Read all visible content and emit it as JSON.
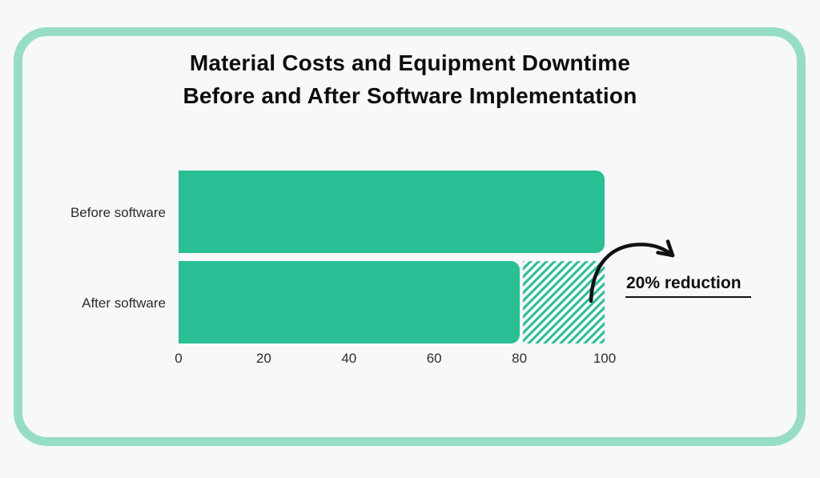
{
  "title": {
    "line1": "Material Costs and Equipment Downtime",
    "line2": "Before and After Software Implementation"
  },
  "chart_data": {
    "type": "bar",
    "orientation": "horizontal",
    "categories": [
      "Before software",
      "After software"
    ],
    "values": [
      100,
      80
    ],
    "xlim": [
      0,
      100
    ],
    "x_ticks": [
      "0",
      "20",
      "40",
      "60",
      "80",
      "100"
    ],
    "grid": false,
    "legend": false,
    "reduction_overlay": {
      "row": "After software",
      "from": 80,
      "to": 100,
      "style": "diagonal-hatch"
    },
    "annotation": {
      "text": "20% reduction"
    }
  },
  "colors": {
    "bar": "#2abe95",
    "hatch_stripe": "#2abe95",
    "card_border": "#96ddc4",
    "background": "#f7f8f9",
    "title_text": "#0d0d0d",
    "label_text": "#2d2d2d",
    "arrow": "#111111"
  }
}
